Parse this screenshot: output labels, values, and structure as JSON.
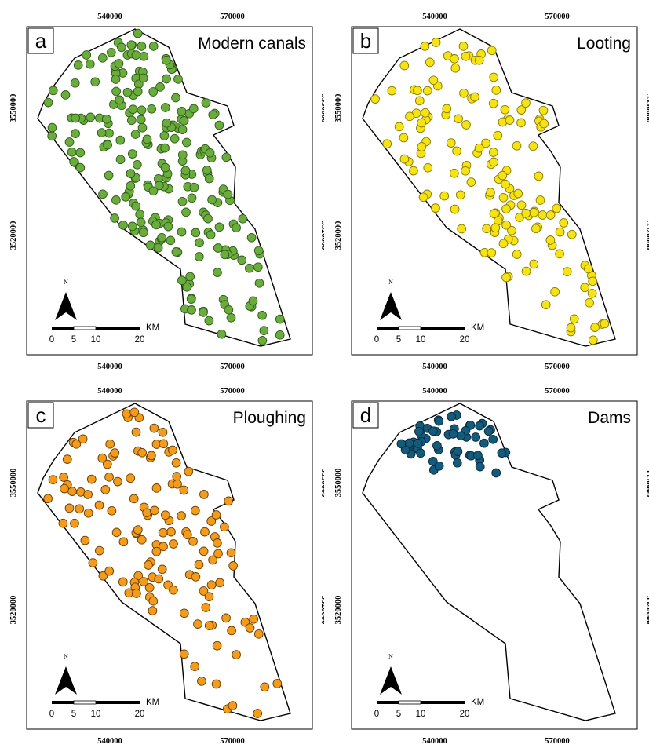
{
  "figure": {
    "panels": [
      {
        "id": "a",
        "letter": "a",
        "title": "Modern canals",
        "fill": "#6aad3c",
        "stroke": "#2f5a1a",
        "density": 230,
        "seed": 11
      },
      {
        "id": "b",
        "letter": "b",
        "title": "Looting",
        "fill": "#f5e313",
        "stroke": "#8a7a00",
        "density": 150,
        "seed": 29
      },
      {
        "id": "c",
        "letter": "c",
        "title": "Ploughing",
        "fill": "#f29b1d",
        "stroke": "#6a3d00",
        "density": 140,
        "seed": 47
      },
      {
        "id": "d",
        "letter": "d",
        "title": "Dams",
        "fill": "#145a7a",
        "stroke": "#07283a",
        "density": 0,
        "seed": 5
      }
    ],
    "x_ticks": [
      "540000",
      "570000"
    ],
    "y_ticks": [
      "3550000",
      "3520000"
    ],
    "scale_bar": {
      "unit": "KM",
      "labels": [
        "0",
        "5",
        "10",
        "20"
      ]
    },
    "north_label": "N"
  }
}
